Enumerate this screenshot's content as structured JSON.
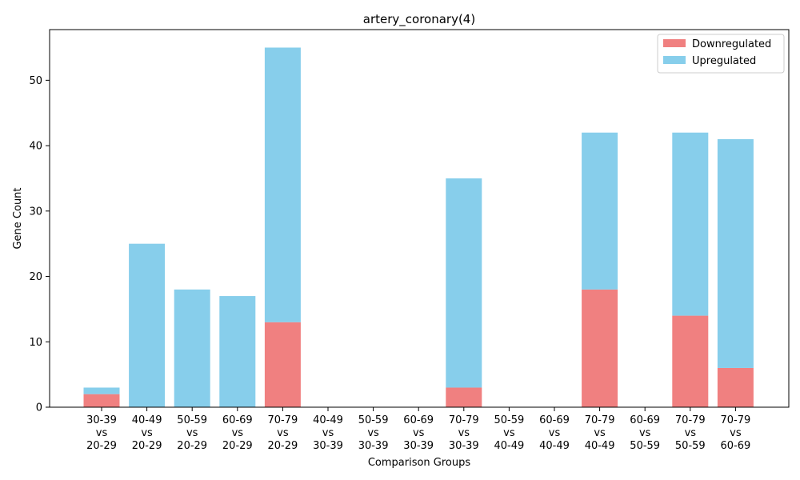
{
  "chart_data": {
    "type": "bar",
    "stacked": true,
    "title": "artery_coronary(4)",
    "xlabel": "Comparison Groups",
    "ylabel": "Gene Count",
    "ylim": [
      0,
      57.75
    ],
    "yticks": [
      0,
      10,
      20,
      30,
      40,
      50
    ],
    "grid": false,
    "legend_position": "top-right",
    "categories": [
      [
        "30-39",
        "vs",
        "20-29"
      ],
      [
        "40-49",
        "vs",
        "20-29"
      ],
      [
        "50-59",
        "vs",
        "20-29"
      ],
      [
        "60-69",
        "vs",
        "20-29"
      ],
      [
        "70-79",
        "vs",
        "20-29"
      ],
      [
        "40-49",
        "vs",
        "30-39"
      ],
      [
        "50-59",
        "vs",
        "30-39"
      ],
      [
        "60-69",
        "vs",
        "30-39"
      ],
      [
        "70-79",
        "vs",
        "30-39"
      ],
      [
        "50-59",
        "vs",
        "40-49"
      ],
      [
        "60-69",
        "vs",
        "40-49"
      ],
      [
        "70-79",
        "vs",
        "40-49"
      ],
      [
        "60-69",
        "vs",
        "50-59"
      ],
      [
        "70-79",
        "vs",
        "50-59"
      ],
      [
        "70-79",
        "vs",
        "60-69"
      ]
    ],
    "series": [
      {
        "name": "Downregulated",
        "color": "#f08080",
        "values": [
          2,
          0,
          0,
          0,
          13,
          0,
          0,
          0,
          3,
          0,
          0,
          18,
          0,
          14,
          6
        ]
      },
      {
        "name": "Upregulated",
        "color": "#87ceeb",
        "values": [
          1,
          25,
          18,
          17,
          42,
          0,
          0,
          0,
          32,
          0,
          0,
          24,
          0,
          28,
          35
        ]
      }
    ]
  }
}
